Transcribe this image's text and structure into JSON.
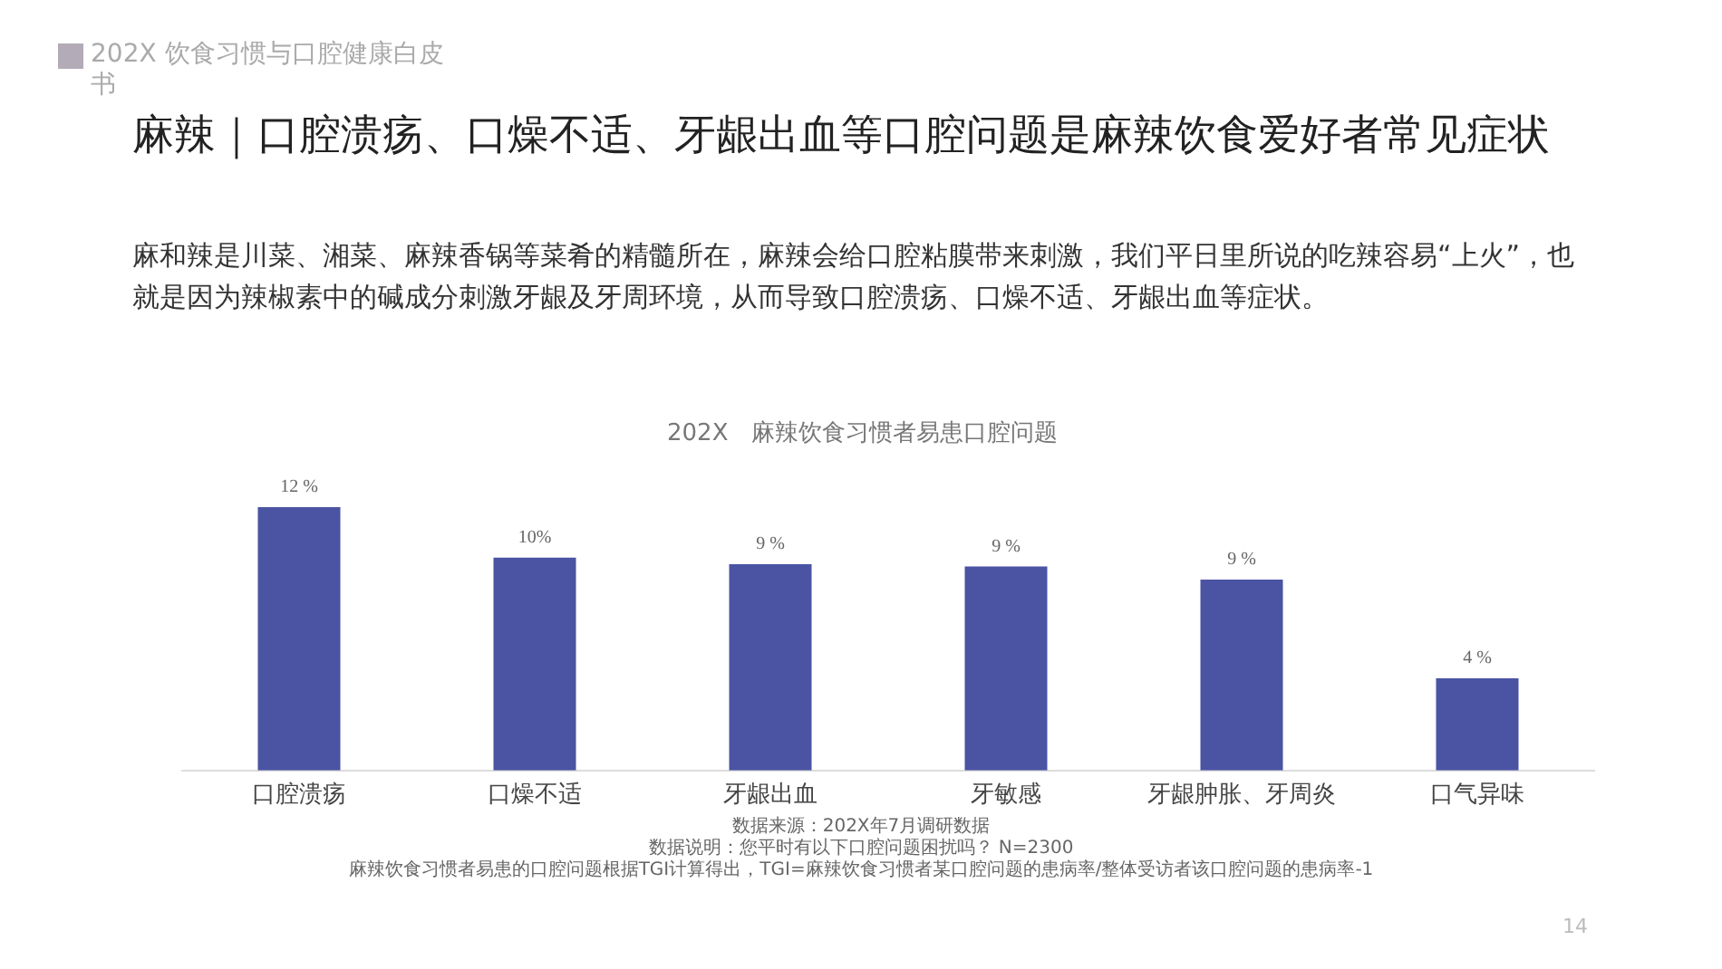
{
  "chart_data": {
    "type": "bar",
    "title": "麻辣｜口腔溃疡、口燥不适、牙龈出血等口腔问题是麻辣饮食爱好者常见症状",
    "subtitle": "麻和辣是川菜、湘菜、麻辣香锅等菜肴的精髓所在，麻辣会给口腔粘膜带来刺激，我们平日里所说的吃辣容易“上火”，也就是因为辣椒素中的碱成分刺激牙龈及牙周环境，从而导致口腔溃疡、口燥不适、牙龈出血等症状。",
    "annotations": [
      "202X 饮食习惯与口腔健康白皮书",
      "202X　麻辣饮食习惯者易患口腔问题",
      "数据来源：202X年7月调研数据",
      "数据说明：您平时有以下口腔问题困扰吗？ N=2300",
      "麻辣饮食习惯者易患的口腔问题根据TGI计算得出，TGI=麻辣饮食习惯者某口腔问题的患病率/整体受访者该口腔问题的患病率-1",
      "14"
    ],
    "categories": [
      "口腔溃疡",
      "口燥不适",
      "牙龈出血",
      "牙敏感",
      "牙龈肿胀、牙周炎",
      "口气异味"
    ],
    "values": [
      12,
      9.7,
      9.4,
      9.3,
      8.7,
      4.2
    ],
    "value_labels": [
      "12 %",
      "10%",
      "9 %",
      "9 %",
      "9 %",
      "4 %"
    ],
    "color": "#4b53a3",
    "grid": false,
    "legend": false
  }
}
